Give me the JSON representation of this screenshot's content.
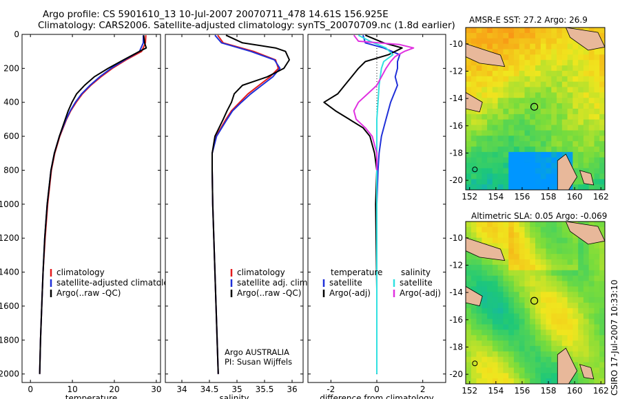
{
  "header": {
    "title_line1": "Argo profile: CS 5901610_13 10-Jul-2007 20070711_478 14.61S 156.925E",
    "title_line2": "Climatology: CARS2006. Satellite-adjusted climatology: synTS_20070709.nc (1.8d earlier)"
  },
  "footer": {
    "credit": "CSIRO 17-Jul-2007 10:33:10"
  },
  "colors": {
    "climatology": "#e41a1c",
    "satellite": "#1f2fd8",
    "argo": "#000000",
    "argo_adj": "#e030e0",
    "sat_sal": "#30e0e0"
  },
  "chart_data": [
    {
      "type": "line",
      "id": "temperature",
      "xlabel": "temperature",
      "ylabel": "",
      "xlim": [
        -2,
        31
      ],
      "ylim": [
        2050,
        0
      ],
      "xticks": [
        0,
        10,
        20,
        30
      ],
      "yticks": [
        0,
        200,
        400,
        600,
        800,
        1000,
        1200,
        1400,
        1600,
        1800,
        2000
      ],
      "legend": {
        "placement": "middle-left",
        "entries": [
          "climatology",
          "satellite-adjusted climatology",
          "Argo(..raw -QC)"
        ]
      },
      "series": [
        {
          "name": "climatology",
          "color": "#e41a1c",
          "y": [
            5,
            50,
            100,
            150,
            200,
            250,
            300,
            350,
            400,
            450,
            500,
            600,
            700,
            800,
            1000,
            1200,
            1400,
            1600,
            1800,
            2000
          ],
          "x": [
            27.5,
            27.4,
            26.5,
            22.8,
            19.5,
            16.8,
            14.4,
            12.4,
            10.9,
            9.6,
            8.6,
            7.0,
            5.8,
            5.0,
            4.1,
            3.5,
            3.0,
            2.7,
            2.4,
            2.2
          ]
        },
        {
          "name": "satellite-adjusted climatology",
          "color": "#1f2fd8",
          "y": [
            5,
            50,
            100,
            150,
            200,
            250,
            300,
            350,
            400,
            450,
            500,
            600,
            700,
            800,
            1000,
            1200,
            1400,
            1600,
            1800,
            2000
          ],
          "x": [
            26.9,
            26.9,
            26.0,
            22.5,
            19.2,
            16.5,
            14.2,
            12.2,
            10.7,
            9.5,
            8.5,
            6.9,
            5.7,
            4.9,
            4.0,
            3.4,
            3.0,
            2.7,
            2.4,
            2.2
          ]
        },
        {
          "name": "Argo(..raw -QC)",
          "color": "#000000",
          "y": [
            5,
            50,
            80,
            100,
            150,
            200,
            250,
            300,
            350,
            400,
            450,
            500,
            600,
            700,
            800,
            1000,
            1200,
            1400,
            1600,
            1800,
            2000
          ],
          "x": [
            27.0,
            27.2,
            27.6,
            26.0,
            22.2,
            18.5,
            15.2,
            12.9,
            11.0,
            9.9,
            9.0,
            8.3,
            6.9,
            5.7,
            4.9,
            4.0,
            3.4,
            3.0,
            2.7,
            2.4,
            2.2
          ]
        }
      ]
    },
    {
      "type": "line",
      "id": "salinity",
      "xlabel": "salinity",
      "xlim": [
        33.7,
        36.2
      ],
      "ylim": [
        2050,
        0
      ],
      "xticks": [
        34,
        34.5,
        35,
        35.5,
        36
      ],
      "yticks": [
        0,
        200,
        400,
        600,
        800,
        1000,
        1200,
        1400,
        1600,
        1800,
        2000
      ],
      "legend": {
        "placement": "middle-right",
        "entries": [
          "climatology",
          "satellite adj. clim.",
          "Argo(..raw -QC)"
        ]
      },
      "annotation": [
        "Argo AUSTRALIA",
        "PI: Susan Wijffels"
      ],
      "series": [
        {
          "name": "climatology",
          "color": "#e41a1c",
          "y": [
            5,
            50,
            100,
            150,
            200,
            250,
            300,
            350,
            400,
            450,
            500,
            600,
            700,
            800,
            1000,
            1200,
            1400,
            1600,
            1800,
            2000
          ],
          "x": [
            34.65,
            34.75,
            35.3,
            35.7,
            35.75,
            35.6,
            35.4,
            35.2,
            35.05,
            34.9,
            34.8,
            34.62,
            34.55,
            34.55,
            34.56,
            34.58,
            34.6,
            34.62,
            34.64,
            34.66
          ]
        },
        {
          "name": "satellite adj. clim.",
          "color": "#1f2fd8",
          "y": [
            5,
            50,
            100,
            150,
            200,
            250,
            300,
            350,
            400,
            450,
            500,
            600,
            700,
            800,
            1000,
            1200,
            1400,
            1600,
            1800,
            2000
          ],
          "x": [
            34.6,
            34.72,
            35.25,
            35.68,
            35.78,
            35.65,
            35.45,
            35.25,
            35.08,
            34.92,
            34.82,
            34.63,
            34.55,
            34.55,
            34.56,
            34.58,
            34.6,
            34.62,
            34.64,
            34.66
          ]
        },
        {
          "name": "Argo(..raw -QC)",
          "color": "#000000",
          "y": [
            5,
            50,
            80,
            100,
            150,
            200,
            250,
            300,
            350,
            400,
            450,
            500,
            600,
            700,
            800,
            1000,
            1200,
            1400,
            1600,
            1800,
            2000
          ],
          "x": [
            34.8,
            35.1,
            35.7,
            35.88,
            35.95,
            35.85,
            35.55,
            35.1,
            34.95,
            34.9,
            34.82,
            34.75,
            34.6,
            34.55,
            34.55,
            34.56,
            34.58,
            34.6,
            34.62,
            34.64,
            34.66
          ]
        }
      ]
    },
    {
      "type": "line",
      "id": "difference",
      "xlabel": "difference from climatology",
      "xlim": [
        -3,
        3
      ],
      "ylim": [
        2050,
        0
      ],
      "xticks": [
        -2,
        0,
        2
      ],
      "yticks": [
        0,
        200,
        400,
        600,
        800,
        1000,
        1200,
        1400,
        1600,
        1800,
        2000
      ],
      "legend": {
        "placement": "middle",
        "entries": [
          "temperature",
          "satellite",
          "Argo(-adj)",
          "salinity",
          "satellite",
          "Argo(-adj)"
        ]
      },
      "series": [
        {
          "name": "temperature satellite",
          "color": "#1f2fd8",
          "y": [
            5,
            50,
            80,
            120,
            160,
            200,
            250,
            300,
            400,
            500,
            600,
            700,
            800,
            1000,
            1500,
            2000
          ],
          "x": [
            -0.6,
            -0.5,
            0.3,
            1.0,
            0.9,
            0.9,
            0.8,
            0.9,
            0.6,
            0.4,
            0.2,
            0.1,
            0.05,
            0.0,
            0.0,
            0.0
          ]
        },
        {
          "name": "temperature Argo(-adj)",
          "color": "#000000",
          "y": [
            5,
            50,
            80,
            120,
            160,
            200,
            250,
            300,
            350,
            400,
            450,
            500,
            550,
            600,
            700,
            800,
            1000,
            1500,
            2000
          ],
          "x": [
            -0.5,
            0.3,
            1.1,
            0.5,
            -0.5,
            -0.8,
            -1.1,
            -1.4,
            -1.7,
            -2.3,
            -1.8,
            -1.2,
            -0.6,
            -0.3,
            -0.1,
            0.0,
            -0.05,
            0.0,
            0.0
          ]
        },
        {
          "name": "salinity satellite",
          "color": "#30e0e0",
          "y": [
            5,
            40,
            80,
            120,
            160,
            200,
            300,
            400,
            500,
            600,
            800,
            1000,
            1500,
            2000
          ],
          "x": [
            -0.8,
            -0.3,
            0.4,
            0.7,
            0.3,
            0.2,
            0.1,
            0.05,
            0.0,
            0.0,
            0.0,
            0.0,
            0.0,
            0.0
          ]
        },
        {
          "name": "salinity Argo(-adj)",
          "color": "#e030e0",
          "y": [
            5,
            40,
            60,
            80,
            100,
            130,
            160,
            200,
            250,
            300,
            350,
            400,
            450,
            500,
            550,
            600,
            700,
            800
          ],
          "x": [
            -1.0,
            -0.8,
            1.0,
            1.6,
            1.2,
            0.8,
            0.6,
            0.4,
            0.2,
            0.0,
            -0.4,
            -0.8,
            -1.0,
            -0.9,
            -0.5,
            -0.2,
            0.0,
            0.0
          ]
        }
      ]
    },
    {
      "type": "heatmap",
      "id": "sst-map",
      "title": "AMSR-E SST: 27.2 Argo: 26.9",
      "xlim": [
        151.7,
        162.3
      ],
      "ylim": [
        -20.7,
        -8.8
      ],
      "xticks": [
        152,
        154,
        156,
        158,
        160,
        162
      ],
      "yticks": [
        -10,
        -12,
        -14,
        -16,
        -18,
        -20
      ],
      "marker": {
        "lon": 156.925,
        "lat": -14.61
      }
    },
    {
      "type": "heatmap",
      "id": "sla-map",
      "title": "Altimetric SLA: 0.05 Argo: -0.069",
      "xlim": [
        151.7,
        162.3
      ],
      "ylim": [
        -20.7,
        -8.8
      ],
      "xticks": [
        152,
        154,
        156,
        158,
        160,
        162
      ],
      "yticks": [
        -10,
        -12,
        -14,
        -16,
        -18,
        -20
      ],
      "marker": {
        "lon": 156.925,
        "lat": -14.61
      }
    }
  ]
}
